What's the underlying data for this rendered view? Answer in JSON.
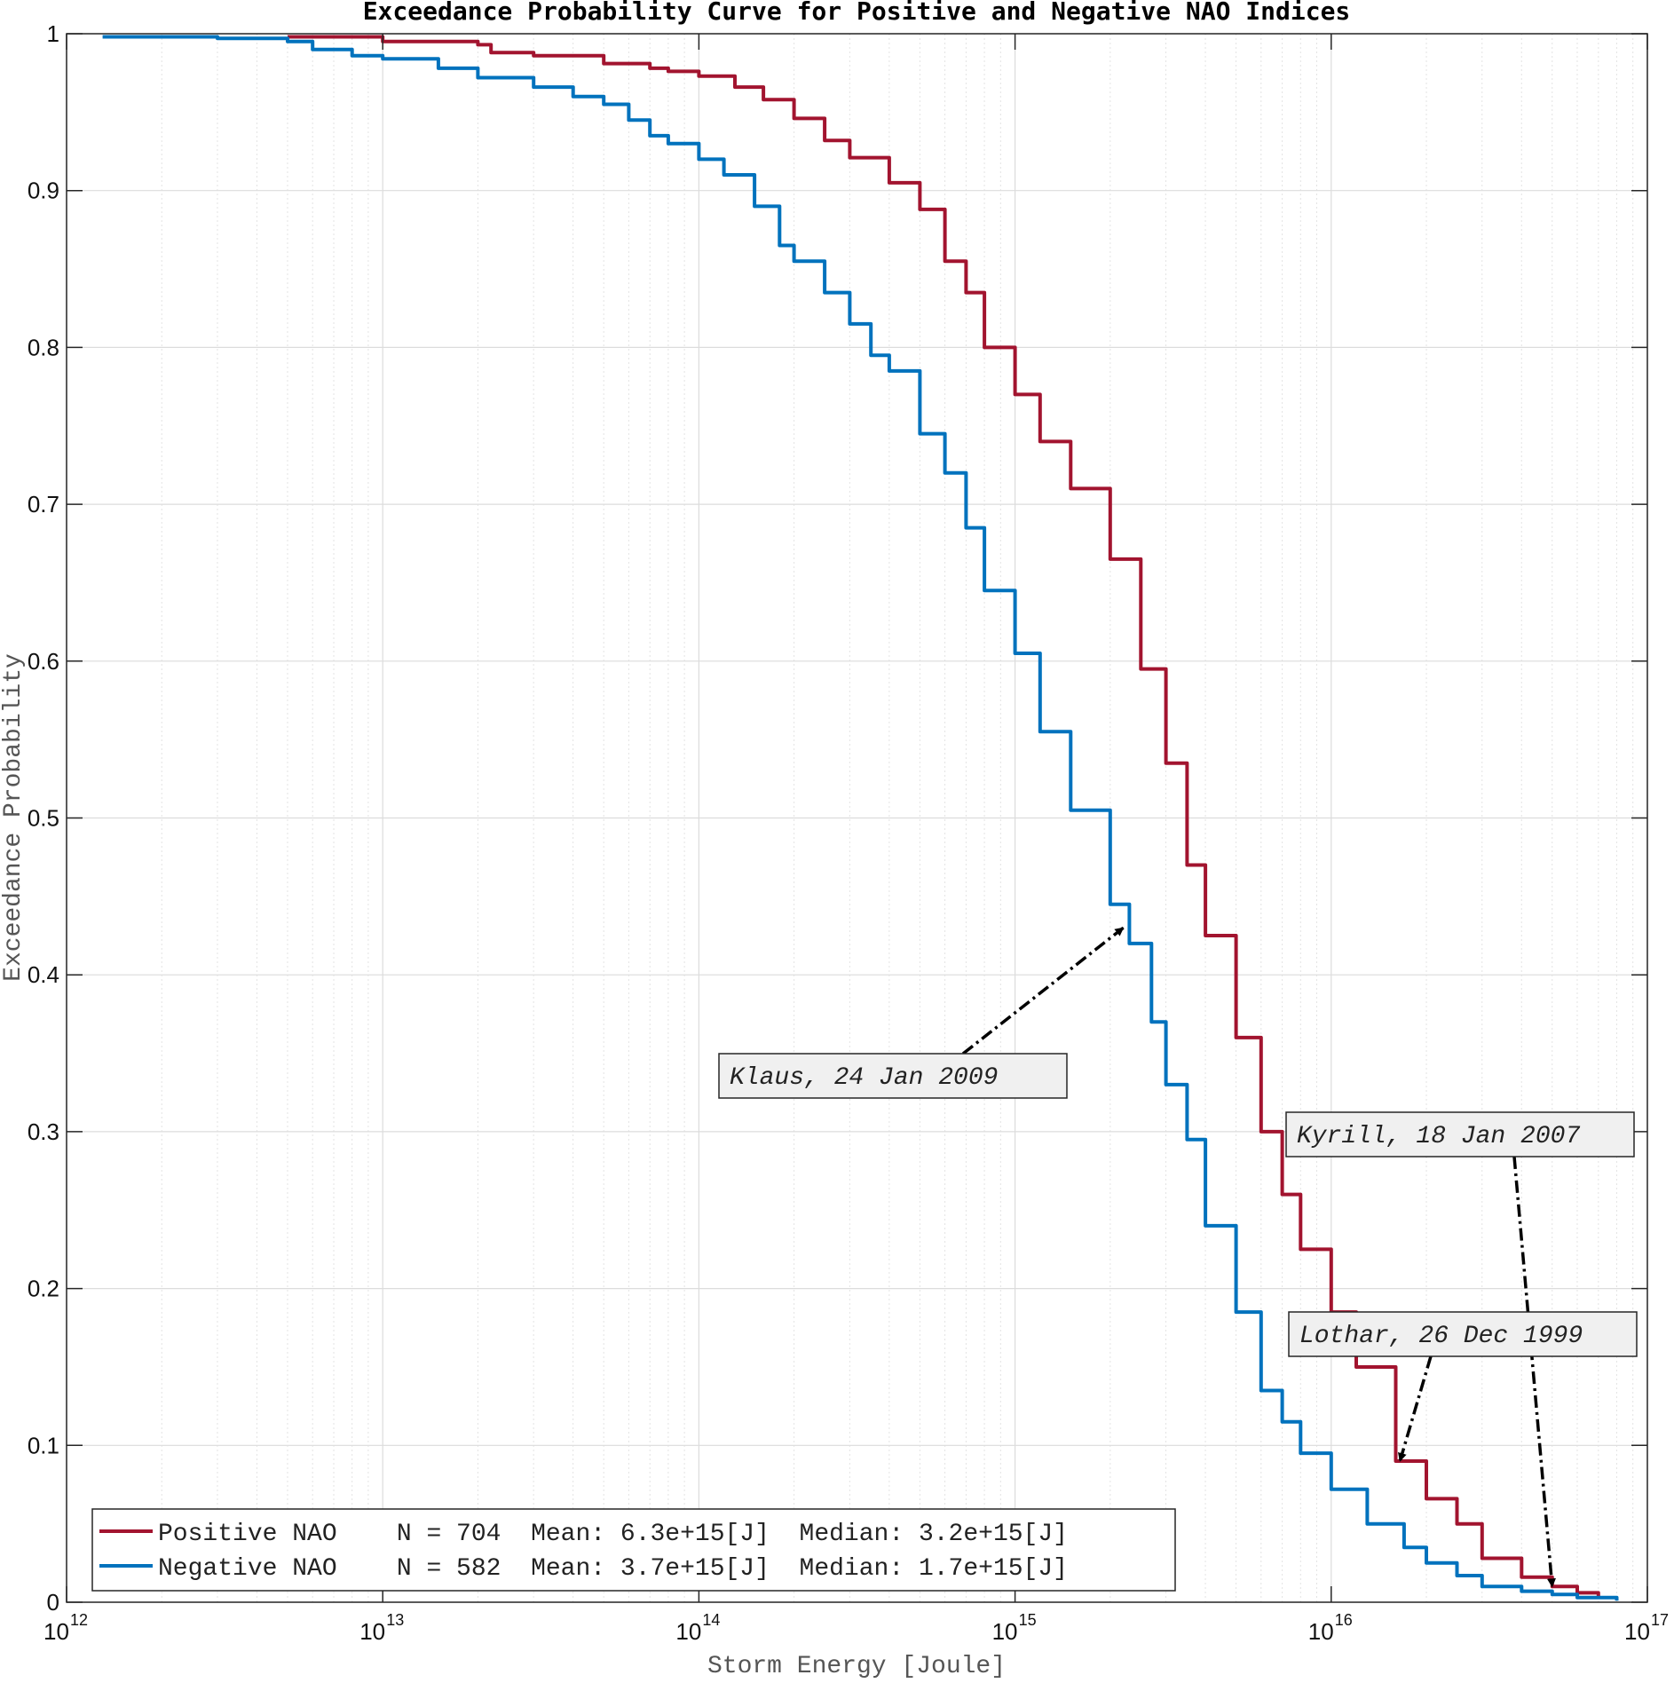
{
  "chart_data": {
    "type": "line",
    "title": "Exceedance Probability Curve for Positive and Negative NAO Indices",
    "xlabel": "Storm Energy [Joule]",
    "ylabel": "Exceedance Probability",
    "xscale": "log",
    "xlim": [
      1000000000000.0,
      1e+17
    ],
    "ylim": [
      0,
      1
    ],
    "x_ticks": [
      {
        "base": "10",
        "exp": "12",
        "value": 1000000000000.0
      },
      {
        "base": "10",
        "exp": "13",
        "value": 10000000000000.0
      },
      {
        "base": "10",
        "exp": "14",
        "value": 100000000000000.0
      },
      {
        "base": "10",
        "exp": "15",
        "value": 1000000000000000.0
      },
      {
        "base": "10",
        "exp": "16",
        "value": 1e+16
      },
      {
        "base": "10",
        "exp": "17",
        "value": 1e+17
      }
    ],
    "y_ticks": [
      "0",
      "0.1",
      "0.2",
      "0.3",
      "0.4",
      "0.5",
      "0.6",
      "0.7",
      "0.8",
      "0.9",
      "1"
    ],
    "grid": true,
    "legend_position": "bottom-left",
    "series": [
      {
        "name": "Positive NAO",
        "color": "#A2142F",
        "legend_text": "Positive NAO    N = 704  Mean: 6.3e+15[J]  Median: 3.2e+15[J]",
        "x": [
          5000000000000.0,
          10000000000000.0,
          20000000000000.0,
          22000000000000.0,
          30000000000000.0,
          50000000000000.0,
          70000000000000.0,
          80000000000000.0,
          100000000000000.0,
          130000000000000.0,
          160000000000000.0,
          200000000000000.0,
          250000000000000.0,
          300000000000000.0,
          400000000000000.0,
          500000000000000.0,
          600000000000000.0,
          700000000000000.0,
          800000000000000.0,
          1000000000000000.0,
          1200000000000000.0,
          1500000000000000.0,
          2000000000000000.0,
          2500000000000000.0,
          3000000000000000.0,
          3500000000000000.0,
          4000000000000000.0,
          5000000000000000.0,
          6000000000000000.0,
          7000000000000000.0,
          8000000000000000.0,
          1e+16,
          1.2e+16,
          1.6e+16,
          2e+16,
          2.5e+16,
          3e+16,
          4e+16,
          5e+16,
          6e+16,
          7e+16
        ],
        "y": [
          0.998,
          0.995,
          0.993,
          0.988,
          0.986,
          0.981,
          0.978,
          0.976,
          0.973,
          0.966,
          0.958,
          0.946,
          0.932,
          0.921,
          0.905,
          0.888,
          0.855,
          0.835,
          0.8,
          0.77,
          0.74,
          0.71,
          0.665,
          0.595,
          0.535,
          0.47,
          0.425,
          0.36,
          0.3,
          0.26,
          0.225,
          0.185,
          0.15,
          0.09,
          0.066,
          0.05,
          0.028,
          0.016,
          0.01,
          0.006,
          0.003
        ]
      },
      {
        "name": "Negative NAO",
        "color": "#0072BD",
        "legend_text": "Negative NAO    N = 582  Mean: 3.7e+15[J]  Median: 1.7e+15[J]",
        "x": [
          1300000000000.0,
          3000000000000.0,
          5000000000000.0,
          6000000000000.0,
          8000000000000.0,
          10000000000000.0,
          15000000000000.0,
          20000000000000.0,
          30000000000000.0,
          40000000000000.0,
          50000000000000.0,
          60000000000000.0,
          70000000000000.0,
          80000000000000.0,
          100000000000000.0,
          120000000000000.0,
          150000000000000.0,
          180000000000000.0,
          200000000000000.0,
          250000000000000.0,
          300000000000000.0,
          350000000000000.0,
          400000000000000.0,
          500000000000000.0,
          600000000000000.0,
          700000000000000.0,
          800000000000000.0,
          1000000000000000.0,
          1200000000000000.0,
          1500000000000000.0,
          2000000000000000.0,
          2300000000000000.0,
          2700000000000000.0,
          3000000000000000.0,
          3500000000000000.0,
          4000000000000000.0,
          5000000000000000.0,
          6000000000000000.0,
          7000000000000000.0,
          8000000000000000.0,
          1e+16,
          1.3e+16,
          1.7e+16,
          2e+16,
          2.5e+16,
          3e+16,
          4e+16,
          5e+16,
          6e+16,
          8e+16
        ],
        "y": [
          0.998,
          0.997,
          0.995,
          0.99,
          0.986,
          0.984,
          0.978,
          0.972,
          0.966,
          0.96,
          0.955,
          0.945,
          0.935,
          0.93,
          0.92,
          0.91,
          0.89,
          0.865,
          0.855,
          0.835,
          0.815,
          0.795,
          0.785,
          0.745,
          0.72,
          0.685,
          0.645,
          0.605,
          0.555,
          0.505,
          0.445,
          0.42,
          0.37,
          0.33,
          0.295,
          0.24,
          0.185,
          0.135,
          0.115,
          0.095,
          0.072,
          0.05,
          0.035,
          0.025,
          0.017,
          0.01,
          0.007,
          0.005,
          0.003,
          0.001
        ]
      }
    ],
    "annotations": [
      {
        "text": "Klaus, 24 Jan 2009",
        "target_series": "Negative NAO",
        "target_x": 2200000000000000.0,
        "target_y": 0.43
      },
      {
        "text": "Kyrill, 18 Jan 2007",
        "target_series": "Positive NAO",
        "target_x": 5e+16,
        "target_y": 0.01
      },
      {
        "text": "Lothar, 26 Dec 1999",
        "target_series": "Positive NAO",
        "target_x": 1.65e+16,
        "target_y": 0.09
      }
    ]
  }
}
